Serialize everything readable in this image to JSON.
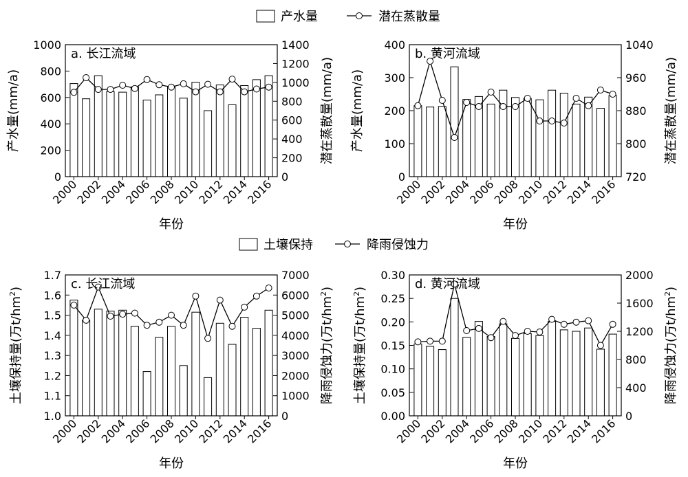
{
  "legends": [
    {
      "bar_label": "产水量",
      "line_label": "潜在蒸散量"
    },
    {
      "bar_label": "土壤保持",
      "line_label": "降雨侵蚀力"
    }
  ],
  "chart_data": [
    {
      "type": "bar",
      "title": "a. 长江流域",
      "categories": [
        2000,
        2001,
        2002,
        2003,
        2004,
        2005,
        2006,
        2007,
        2008,
        2009,
        2010,
        2011,
        2012,
        2013,
        2014,
        2015,
        2016
      ],
      "x_tick_labels": [
        "2000",
        "2002",
        "2004",
        "2006",
        "2008",
        "2010",
        "2012",
        "2014",
        "2016"
      ],
      "xlabel": "年份",
      "ylabel": "产水量(mm/a)",
      "ylim": [
        0,
        1000
      ],
      "yticks": [
        0,
        200,
        400,
        600,
        800,
        1000
      ],
      "y2label": "潜在蒸散量(mm/a)",
      "y2lim": [
        0,
        1400
      ],
      "y2ticks": [
        0,
        200,
        400,
        600,
        800,
        1000,
        1200,
        1400
      ],
      "series": [
        {
          "name": "产水量",
          "kind": "bar",
          "axis": "left",
          "values": [
            705,
            590,
            765,
            645,
            640,
            680,
            580,
            620,
            680,
            595,
            715,
            500,
            695,
            545,
            690,
            735,
            765
          ]
        },
        {
          "name": "潜在蒸散量",
          "kind": "line",
          "axis": "right",
          "values": [
            895,
            1050,
            925,
            925,
            970,
            935,
            1030,
            975,
            950,
            985,
            900,
            980,
            900,
            1035,
            900,
            930,
            950
          ]
        }
      ]
    },
    {
      "type": "bar",
      "title": "b. 黄河流域",
      "categories": [
        2000,
        2001,
        2002,
        2003,
        2004,
        2005,
        2006,
        2007,
        2008,
        2009,
        2010,
        2011,
        2012,
        2013,
        2014,
        2015,
        2016
      ],
      "x_tick_labels": [
        "2000",
        "2002",
        "2004",
        "2006",
        "2008",
        "2010",
        "2012",
        "2014",
        "2016"
      ],
      "xlabel": "年份",
      "ylabel": "产水量(mm/a)",
      "ylim": [
        0,
        400
      ],
      "yticks": [
        0,
        100,
        200,
        300,
        400
      ],
      "y2label": "潜在蒸散量(mm/a)",
      "y2lim": [
        720,
        1040
      ],
      "y2ticks": [
        720,
        800,
        880,
        960,
        1040
      ],
      "series": [
        {
          "name": "产水量",
          "kind": "bar",
          "axis": "left",
          "values": [
            215,
            211,
            213,
            333,
            234,
            243,
            220,
            262,
            240,
            237,
            233,
            262,
            253,
            220,
            241,
            207,
            246
          ]
        },
        {
          "name": "潜在蒸散量",
          "kind": "line",
          "axis": "right",
          "values": [
            892,
            1000,
            905,
            815,
            900,
            890,
            925,
            890,
            890,
            910,
            855,
            855,
            850,
            910,
            892,
            930,
            920
          ]
        }
      ]
    },
    {
      "type": "bar",
      "title": "c. 长江流域",
      "categories": [
        2000,
        2001,
        2002,
        2003,
        2004,
        2005,
        2006,
        2007,
        2008,
        2009,
        2010,
        2011,
        2012,
        2013,
        2014,
        2015,
        2016
      ],
      "x_tick_labels": [
        "2000",
        "2002",
        "2004",
        "2006",
        "2008",
        "2010",
        "2012",
        "2014",
        "2016"
      ],
      "xlabel": "年份",
      "ylabel": "土壤保持量(万t/hm²)",
      "ylim": [
        1.0,
        1.7
      ],
      "yticks": [
        1.0,
        1.1,
        1.2,
        1.3,
        1.4,
        1.5,
        1.6,
        1.7
      ],
      "y2label": "降雨侵蚀力(万t/hm²)",
      "y2lim": [
        0,
        7000
      ],
      "y2ticks": [
        0,
        1000,
        2000,
        3000,
        4000,
        5000,
        6000,
        7000
      ],
      "series": [
        {
          "name": "土壤保持",
          "kind": "bar",
          "axis": "left",
          "values": [
            1.575,
            1.475,
            1.53,
            1.52,
            1.525,
            1.445,
            1.22,
            1.39,
            1.445,
            1.25,
            1.515,
            1.19,
            1.46,
            1.355,
            1.49,
            1.435,
            1.525
          ]
        },
        {
          "name": "降雨侵蚀力",
          "kind": "line",
          "axis": "right",
          "values": [
            5500,
            4750,
            6400,
            4950,
            5050,
            5100,
            4500,
            4650,
            5000,
            4500,
            5950,
            3850,
            5750,
            4450,
            5400,
            5950,
            6350
          ]
        }
      ]
    },
    {
      "type": "bar",
      "title": "d. 黄河流域",
      "categories": [
        2000,
        2001,
        2002,
        2003,
        2004,
        2005,
        2006,
        2007,
        2008,
        2009,
        2010,
        2011,
        2012,
        2013,
        2014,
        2015,
        2016
      ],
      "x_tick_labels": [
        "2000",
        "2002",
        "2004",
        "2006",
        "2008",
        "2010",
        "2012",
        "2014",
        "2016"
      ],
      "xlabel": "年份",
      "ylabel": "土壤保持量(万t/hm²)",
      "ylim": [
        0,
        0.3
      ],
      "yticks": [
        0,
        0.05,
        0.1,
        0.15,
        0.2,
        0.25,
        0.3
      ],
      "y2label": "降雨侵蚀力(万t/hm²)",
      "y2lim": [
        0,
        2000
      ],
      "y2ticks": [
        0,
        400,
        800,
        1200,
        1600,
        2000
      ],
      "series": [
        {
          "name": "土壤保持",
          "kind": "bar",
          "axis": "left",
          "values": [
            0.153,
            0.148,
            0.141,
            0.25,
            0.167,
            0.201,
            0.169,
            0.196,
            0.165,
            0.175,
            0.171,
            0.201,
            0.183,
            0.18,
            0.187,
            0.142,
            0.174
          ]
        },
        {
          "name": "降雨侵蚀力",
          "kind": "line",
          "axis": "right",
          "values": [
            1050,
            1060,
            1060,
            1870,
            1210,
            1240,
            1110,
            1340,
            1140,
            1200,
            1190,
            1370,
            1300,
            1330,
            1350,
            1000,
            1300
          ]
        }
      ]
    }
  ]
}
